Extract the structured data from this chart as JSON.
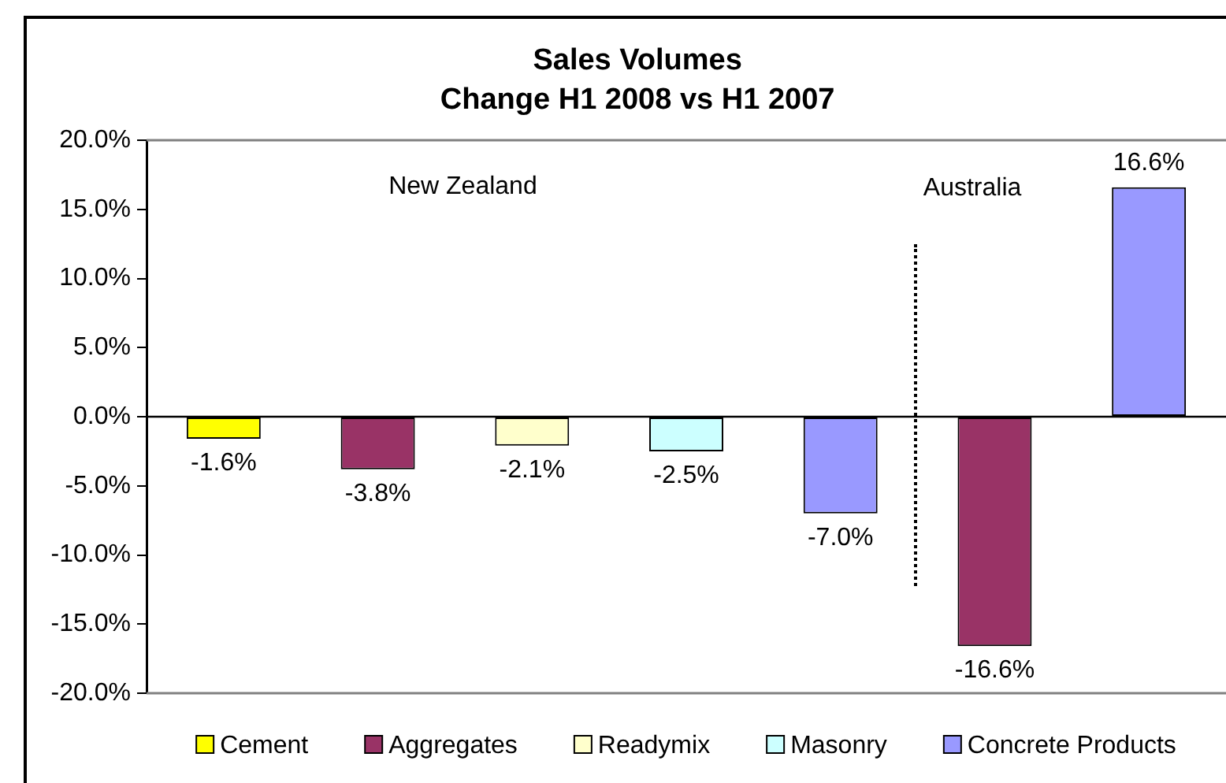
{
  "chart_data": {
    "type": "bar",
    "title": "Sales Volumes",
    "subtitle": "Change H1 2008 vs H1 2007",
    "categories": [
      null,
      null,
      null,
      null,
      null,
      null,
      null
    ],
    "series": [
      {
        "name": "Cement",
        "color": "#ffff00",
        "values": [
          -1.6,
          null,
          null,
          null,
          null,
          null,
          null
        ],
        "value_labels": [
          "-1.6%",
          null,
          null,
          null,
          null,
          null,
          null
        ]
      },
      {
        "name": "Aggregates",
        "color": "#993366",
        "values": [
          null,
          -3.8,
          null,
          null,
          null,
          -16.6,
          null
        ],
        "value_labels": [
          null,
          "-3.8%",
          null,
          null,
          null,
          "-16.6%",
          null
        ]
      },
      {
        "name": "Readymix",
        "color": "#ffffcc",
        "values": [
          null,
          null,
          -2.1,
          null,
          null,
          null,
          null
        ],
        "value_labels": [
          null,
          null,
          "-2.1%",
          null,
          null,
          null,
          null
        ]
      },
      {
        "name": "Masonry",
        "color": "#ccffff",
        "values": [
          null,
          null,
          null,
          -2.5,
          null,
          null,
          null
        ],
        "value_labels": [
          null,
          null,
          null,
          "-2.5%",
          null,
          null,
          null
        ]
      },
      {
        "name": "Concrete Products",
        "color": "#9999ff",
        "values": [
          null,
          null,
          null,
          null,
          -7.0,
          null,
          16.6
        ],
        "value_labels": [
          null,
          null,
          null,
          null,
          "-7.0%",
          null,
          "16.6%"
        ]
      }
    ],
    "ylim": [
      -20,
      20
    ],
    "yticks": [
      {
        "value": -20,
        "label": "-20.0%"
      },
      {
        "value": -15,
        "label": "-15.0%"
      },
      {
        "value": -10,
        "label": "-10.0%"
      },
      {
        "value": -5,
        "label": "-5.0%"
      },
      {
        "value": 0,
        "label": "0.0%"
      },
      {
        "value": 5,
        "label": "5.0%"
      },
      {
        "value": 10,
        "label": "10.0%"
      },
      {
        "value": 15,
        "label": "15.0%"
      },
      {
        "value": 20,
        "label": "20.0%"
      }
    ],
    "annotations": [
      "New Zealand",
      "Australia"
    ],
    "legend": "bottom",
    "tick_labels": "y"
  }
}
